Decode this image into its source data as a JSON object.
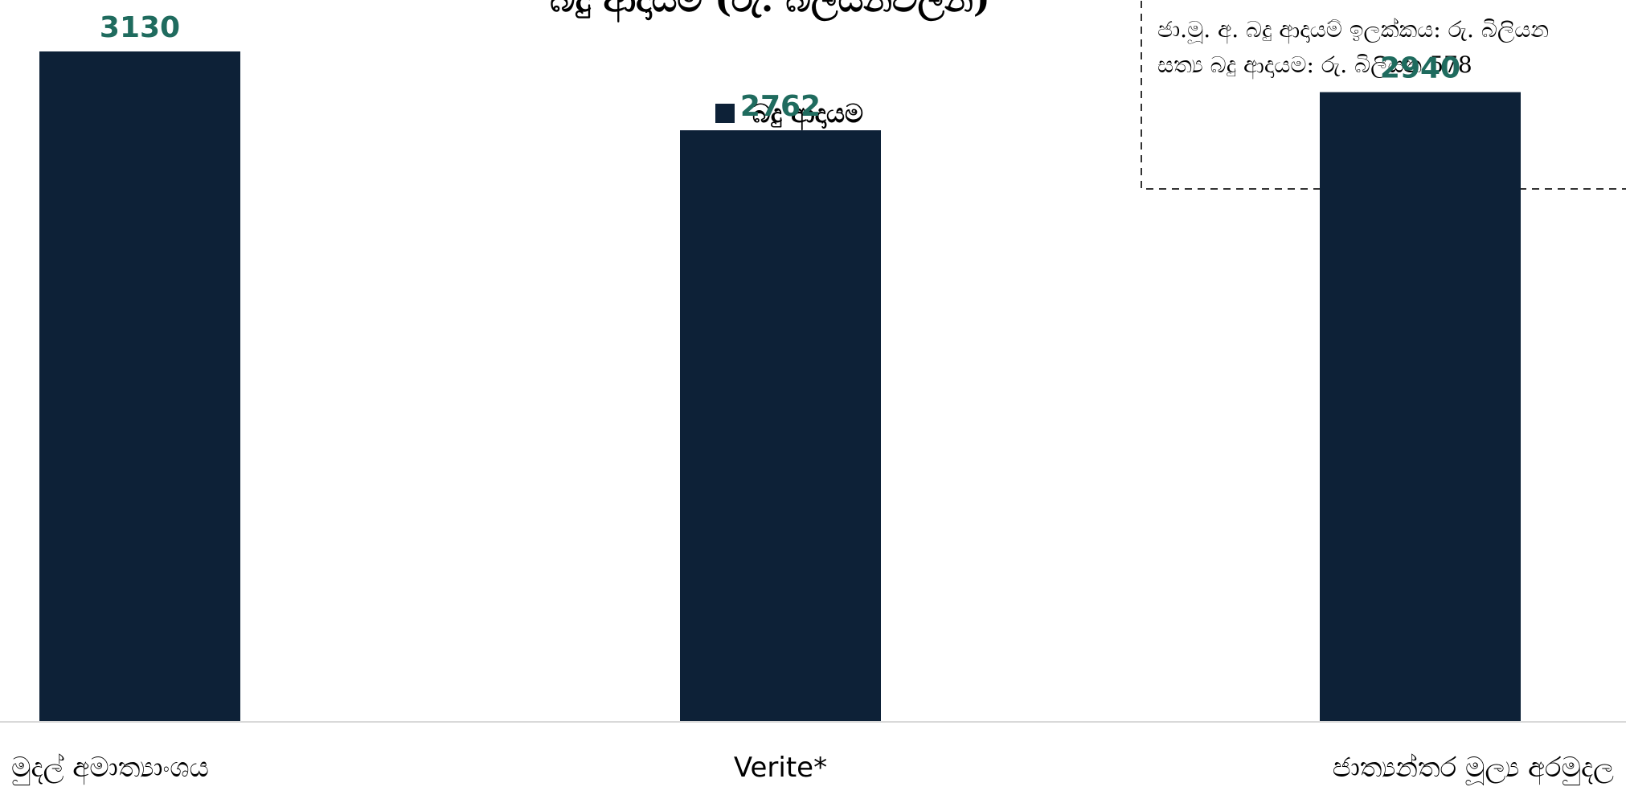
{
  "colors": {
    "bar": "#0d2137",
    "value_label": "#1f6b5e",
    "axis": "#d9d9d9",
    "text": "#000000"
  },
  "chart_data": {
    "type": "bar",
    "title": "බදු ආදායම (රු. බිලියනවලින්)",
    "categories": [
      "මුදල් අමාත්‍යාංශය",
      "Verite*",
      "ජාත්‍යන්තර මූල්‍ය අරමුදල"
    ],
    "series": [
      {
        "name": "බදු ආදායම",
        "values": [
          3130,
          2762,
          2940
        ]
      }
    ],
    "ylim": [
      0,
      3130
    ],
    "legend": "top-center",
    "grid": false
  },
  "note": {
    "lines": [
      "ජා.මූ. අ. බදු ආදායම් ඉලක්කය: රු. බිලියන",
      "සත්‍ය බදු ආදායම: රු. බිලියන 578"
    ]
  }
}
